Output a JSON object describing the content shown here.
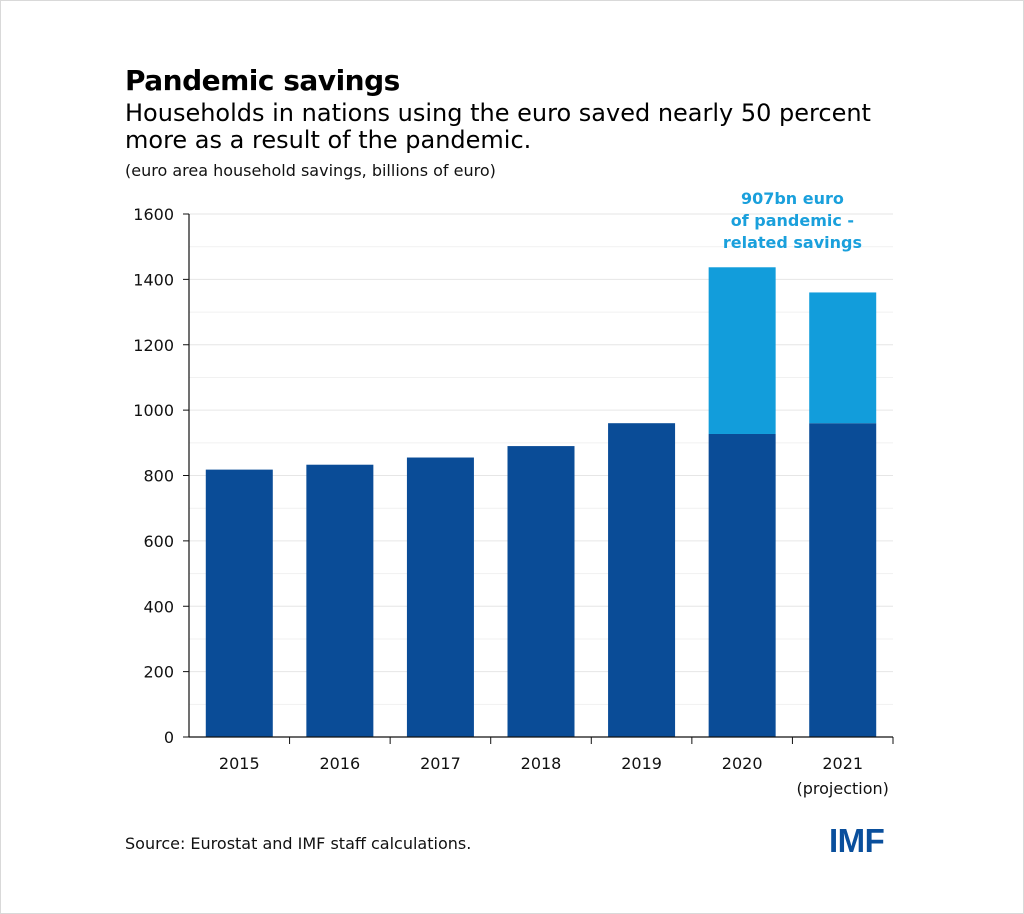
{
  "chart_data": {
    "type": "bar",
    "stacked": true,
    "title": "Pandemic savings",
    "subtitle": "Households in nations using the euro saved nearly 50 percent more as a result of the pandemic.",
    "ylabel": "(euro area household savings, billions of euro)",
    "categories": [
      "2015",
      "2016",
      "2017",
      "2018",
      "2019",
      "2020",
      "2021"
    ],
    "category_sublabels": [
      "",
      "",
      "",
      "",
      "",
      "",
      "(projection)"
    ],
    "series": [
      {
        "color": "#0a4c97",
        "values": [
          818,
          833,
          855,
          890,
          960,
          927,
          960
        ]
      },
      {
        "color": "#129ddb",
        "values": [
          0,
          0,
          0,
          0,
          0,
          510,
          400
        ]
      }
    ],
    "ylim": [
      0,
      1600
    ],
    "yticks": [
      "0",
      "200",
      "400",
      "600",
      "800",
      "1000",
      "1200",
      "1400",
      "1600"
    ],
    "annotation": [
      "907bn euro",
      "of pandemic -",
      "related savings"
    ],
    "grid": true,
    "source": "Source: Eurostat and IMF staff calculations.",
    "logo": "IMF"
  }
}
